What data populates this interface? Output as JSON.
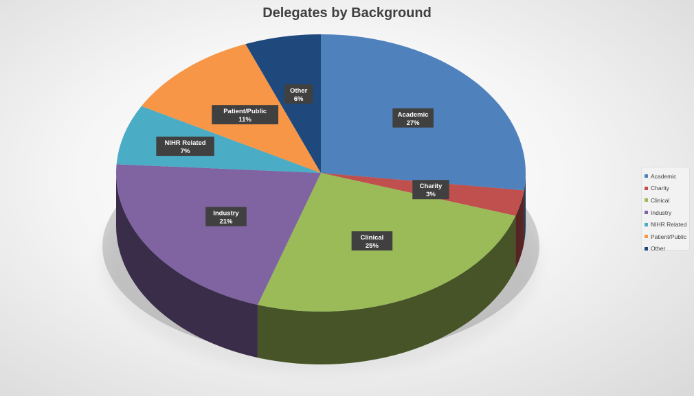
{
  "chart_data": {
    "type": "pie",
    "title": "Delegates by Background",
    "slices": [
      {
        "label": "Academic",
        "value": 27,
        "display": "27%",
        "color": "#4f81bd"
      },
      {
        "label": "Charity",
        "value": 3,
        "display": "3%",
        "color": "#c0504d"
      },
      {
        "label": "Clinical",
        "value": 25,
        "display": "25%",
        "color": "#9bbb59"
      },
      {
        "label": "Industry",
        "value": 21,
        "display": "21%",
        "color": "#8064a2"
      },
      {
        "label": "NIHR Related",
        "value": 7,
        "display": "7%",
        "color": "#4bacc6"
      },
      {
        "label": "Patient/Public",
        "value": 11,
        "display": "11%",
        "color": "#f79646"
      },
      {
        "label": "Other",
        "value": 6,
        "display": "6%",
        "color": "#1f497d"
      }
    ],
    "legend_position": "right",
    "three_d": true
  }
}
